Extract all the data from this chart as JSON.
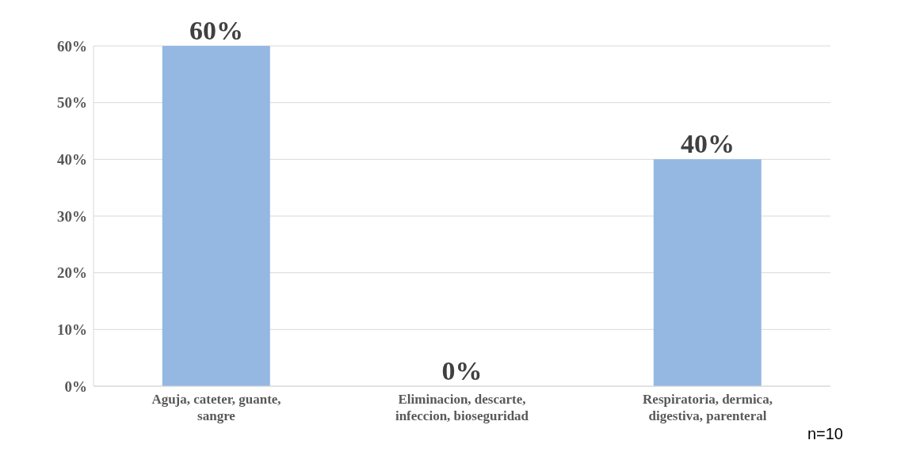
{
  "chart_data": {
    "type": "bar",
    "categories": [
      "Aguja, cateter, guante, sangre",
      "Eliminacion, descarte, infeccion, bioseguridad",
      "Respiratoria, dermica, digestiva, parenteral"
    ],
    "values": [
      60,
      0,
      40
    ],
    "color": "#95b8e2",
    "value_labels": [
      "60%",
      "0%",
      "40%"
    ],
    "ylim": [
      0,
      60
    ],
    "yticks": [
      {
        "value": 0,
        "label": "0%"
      },
      {
        "value": 10,
        "label": "10%"
      },
      {
        "value": 20,
        "label": "20%"
      },
      {
        "value": 30,
        "label": "30%"
      },
      {
        "value": 40,
        "label": "40%"
      },
      {
        "value": 50,
        "label": "50%"
      },
      {
        "value": 60,
        "label": "60%"
      }
    ],
    "grid": "y",
    "annotations": [
      "n=10"
    ]
  }
}
